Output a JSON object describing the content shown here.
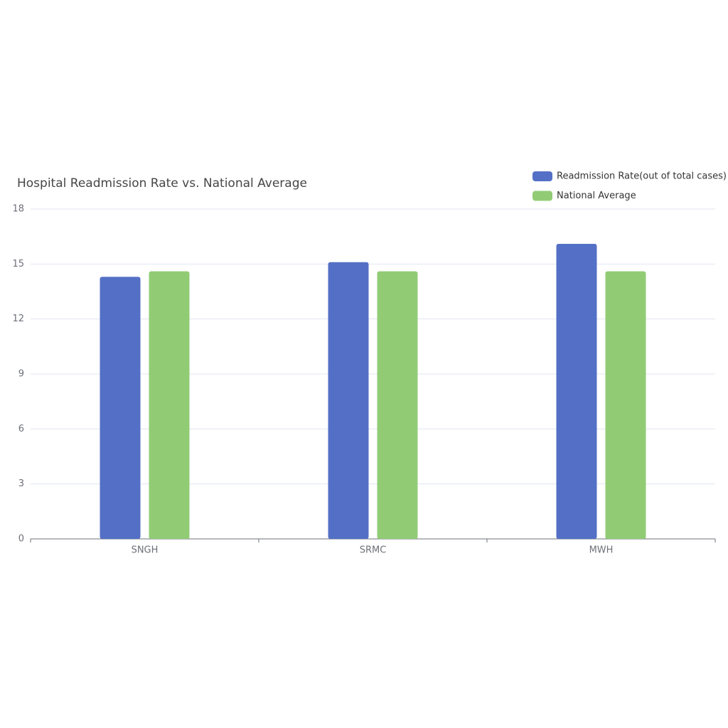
{
  "chart_data": {
    "type": "bar",
    "title": "Hospital Readmission Rate vs. National Average",
    "categories": [
      "SNGH",
      "SRMC",
      "MWH"
    ],
    "series": [
      {
        "name": "Readmission Rate(out of total cases)",
        "color": "#5470c6",
        "values": [
          14.3,
          15.1,
          16.1
        ]
      },
      {
        "name": "National Average",
        "color": "#91cc75",
        "values": [
          14.6,
          14.6,
          14.6
        ]
      }
    ],
    "ylim": [
      0,
      18
    ],
    "yticks": [
      0,
      3,
      6,
      9,
      12,
      15,
      18
    ],
    "grid": true,
    "legend": "top-right"
  }
}
